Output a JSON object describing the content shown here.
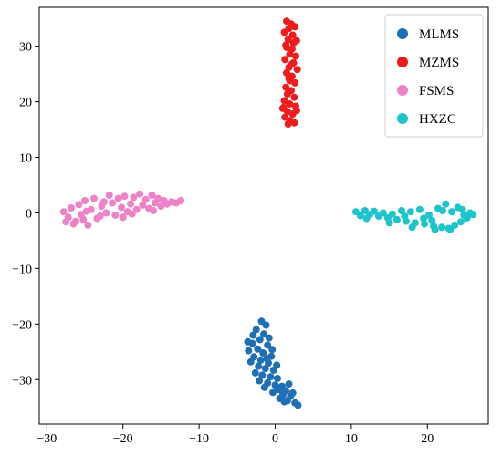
{
  "chart_data": {
    "type": "scatter",
    "title": "",
    "xlabel": "",
    "ylabel": "",
    "xlim": [
      -31,
      28
    ],
    "ylim": [
      -38,
      37
    ],
    "x_ticks": [
      -30,
      -20,
      -10,
      0,
      10,
      20
    ],
    "y_ticks": [
      -30,
      -20,
      -10,
      0,
      10,
      20,
      30
    ],
    "grid": false,
    "legend_position": "top-right",
    "series": [
      {
        "name": "MLMS",
        "color": "#1f6fb4",
        "points": [
          [
            -1.8,
            -19.5
          ],
          [
            -1.2,
            -20.2
          ],
          [
            -2.5,
            -21.0
          ],
          [
            -1.5,
            -21.8
          ],
          [
            -0.8,
            -22.5
          ],
          [
            -2.0,
            -22.8
          ],
          [
            -3.0,
            -23.5
          ],
          [
            -1.0,
            -23.8
          ],
          [
            -2.3,
            -24.5
          ],
          [
            -3.5,
            -24.8
          ],
          [
            -1.6,
            -25.2
          ],
          [
            -0.5,
            -25.8
          ],
          [
            -2.8,
            -25.9
          ],
          [
            -1.9,
            -26.5
          ],
          [
            -0.9,
            -27.0
          ],
          [
            -3.2,
            -26.8
          ],
          [
            -2.2,
            -27.6
          ],
          [
            -1.3,
            -28.0
          ],
          [
            -0.2,
            -28.3
          ],
          [
            -2.6,
            -28.8
          ],
          [
            -1.7,
            -29.2
          ],
          [
            -0.6,
            -29.5
          ],
          [
            0.3,
            -29.8
          ],
          [
            -2.1,
            -30.2
          ],
          [
            -1.0,
            -30.6
          ],
          [
            0.0,
            -31.0
          ],
          [
            0.9,
            -31.2
          ],
          [
            -1.4,
            -31.4
          ],
          [
            0.5,
            -31.8
          ],
          [
            1.4,
            -32.0
          ],
          [
            -0.3,
            -32.3
          ],
          [
            1.0,
            -32.8
          ],
          [
            2.0,
            -33.0
          ],
          [
            0.6,
            -33.4
          ],
          [
            1.6,
            -33.8
          ],
          [
            2.6,
            -34.2
          ],
          [
            1.2,
            -34.0
          ],
          [
            3.0,
            -34.6
          ],
          [
            -2.9,
            -22.0
          ],
          [
            -1.1,
            -26.2
          ],
          [
            0.2,
            -27.4
          ],
          [
            1.8,
            -30.8
          ],
          [
            -0.4,
            -24.6
          ],
          [
            2.3,
            -32.4
          ],
          [
            -3.6,
            -23.2
          ]
        ]
      },
      {
        "name": "MZMS",
        "color": "#ee1c1c",
        "points": [
          [
            1.5,
            34.5
          ],
          [
            2.1,
            34.0
          ],
          [
            1.8,
            33.2
          ],
          [
            2.6,
            33.5
          ],
          [
            1.2,
            32.5
          ],
          [
            2.3,
            32.0
          ],
          [
            1.7,
            31.2
          ],
          [
            2.8,
            31.0
          ],
          [
            1.4,
            30.2
          ],
          [
            2.2,
            29.5
          ],
          [
            1.9,
            28.6
          ],
          [
            2.7,
            28.2
          ],
          [
            1.3,
            27.6
          ],
          [
            2.4,
            27.0
          ],
          [
            1.8,
            26.2
          ],
          [
            2.9,
            25.8
          ],
          [
            1.5,
            25.2
          ],
          [
            2.2,
            24.6
          ],
          [
            1.9,
            23.8
          ],
          [
            2.6,
            23.4
          ],
          [
            1.4,
            22.6
          ],
          [
            2.1,
            22.0
          ],
          [
            1.6,
            21.4
          ],
          [
            2.5,
            20.8
          ],
          [
            1.2,
            20.2
          ],
          [
            1.9,
            19.6
          ],
          [
            2.7,
            19.2
          ],
          [
            1.0,
            18.8
          ],
          [
            1.6,
            18.2
          ],
          [
            2.3,
            17.8
          ],
          [
            1.3,
            17.2
          ],
          [
            2.0,
            16.6
          ],
          [
            1.7,
            16.0
          ],
          [
            2.5,
            16.2
          ],
          [
            1.1,
            19.0
          ],
          [
            2.8,
            18.4
          ],
          [
            1.5,
            29.8
          ],
          [
            2.4,
            30.6
          ],
          [
            1.8,
            24.2
          ],
          [
            2.2,
            26.8
          ]
        ]
      },
      {
        "name": "FSMS",
        "color": "#ee82c6",
        "points": [
          [
            -27.8,
            0.2
          ],
          [
            -27.2,
            -0.8
          ],
          [
            -26.8,
            0.9
          ],
          [
            -26.2,
            -1.5
          ],
          [
            -25.8,
            1.5
          ],
          [
            -25.5,
            -0.3
          ],
          [
            -25.0,
            2.2
          ],
          [
            -24.6,
            -2.2
          ],
          [
            -24.2,
            0.6
          ],
          [
            -23.8,
            2.6
          ],
          [
            -23.4,
            -1.0
          ],
          [
            -22.8,
            1.2
          ],
          [
            -22.2,
            0.0
          ],
          [
            -21.8,
            3.2
          ],
          [
            -21.4,
            1.8
          ],
          [
            -21.0,
            -0.4
          ],
          [
            -20.6,
            2.6
          ],
          [
            -20.2,
            1.0
          ],
          [
            -19.8,
            3.0
          ],
          [
            -19.4,
            0.2
          ],
          [
            -19.0,
            1.6
          ],
          [
            -18.6,
            2.8
          ],
          [
            -18.2,
            0.6
          ],
          [
            -17.8,
            3.4
          ],
          [
            -17.4,
            1.4
          ],
          [
            -17.0,
            2.4
          ],
          [
            -16.6,
            0.8
          ],
          [
            -16.2,
            3.2
          ],
          [
            -15.8,
            1.8
          ],
          [
            -15.4,
            2.6
          ],
          [
            -15.0,
            1.2
          ],
          [
            -14.6,
            2.2
          ],
          [
            -14.2,
            1.6
          ],
          [
            -13.6,
            2.0
          ],
          [
            -13.0,
            1.8
          ],
          [
            -12.4,
            2.2
          ],
          [
            -26.5,
            -2.0
          ],
          [
            -25.2,
            -1.2
          ],
          [
            -23.0,
            -0.6
          ],
          [
            -20.0,
            -0.8
          ],
          [
            -24.8,
            0.3
          ],
          [
            -22.5,
            2.0
          ],
          [
            -18.8,
            -0.2
          ],
          [
            -16.0,
            0.4
          ],
          [
            -27.5,
            -1.6
          ]
        ]
      },
      {
        "name": "HXZC",
        "color": "#1cc4cc",
        "points": [
          [
            10.6,
            0.2
          ],
          [
            11.2,
            -0.5
          ],
          [
            11.8,
            0.4
          ],
          [
            12.4,
            -0.3
          ],
          [
            13.0,
            0.3
          ],
          [
            13.6,
            -0.6
          ],
          [
            14.2,
            0.0
          ],
          [
            14.8,
            -0.9
          ],
          [
            15.4,
            -0.2
          ],
          [
            16.0,
            -1.2
          ],
          [
            16.6,
            0.4
          ],
          [
            17.2,
            -1.5
          ],
          [
            17.8,
            0.2
          ],
          [
            18.4,
            -1.8
          ],
          [
            19.0,
            0.6
          ],
          [
            19.6,
            -2.0
          ],
          [
            20.2,
            -0.4
          ],
          [
            20.8,
            -2.4
          ],
          [
            21.4,
            0.8
          ],
          [
            21.9,
            -2.6
          ],
          [
            22.4,
            1.6
          ],
          [
            22.8,
            -2.8
          ],
          [
            23.2,
            0.2
          ],
          [
            23.6,
            -2.2
          ],
          [
            24.0,
            1.0
          ],
          [
            24.4,
            -1.6
          ],
          [
            24.8,
            -0.4
          ],
          [
            25.2,
            -0.9
          ],
          [
            25.6,
            0.0
          ],
          [
            26.0,
            -0.3
          ],
          [
            12.0,
            -1.0
          ],
          [
            15.0,
            -1.8
          ],
          [
            18.0,
            -2.6
          ],
          [
            21.0,
            -3.0
          ],
          [
            23.0,
            -3.0
          ],
          [
            19.5,
            -1.0
          ],
          [
            17.0,
            -0.6
          ],
          [
            22.0,
            0.4
          ],
          [
            24.6,
            0.6
          ],
          [
            20.6,
            -1.4
          ]
        ]
      }
    ]
  }
}
